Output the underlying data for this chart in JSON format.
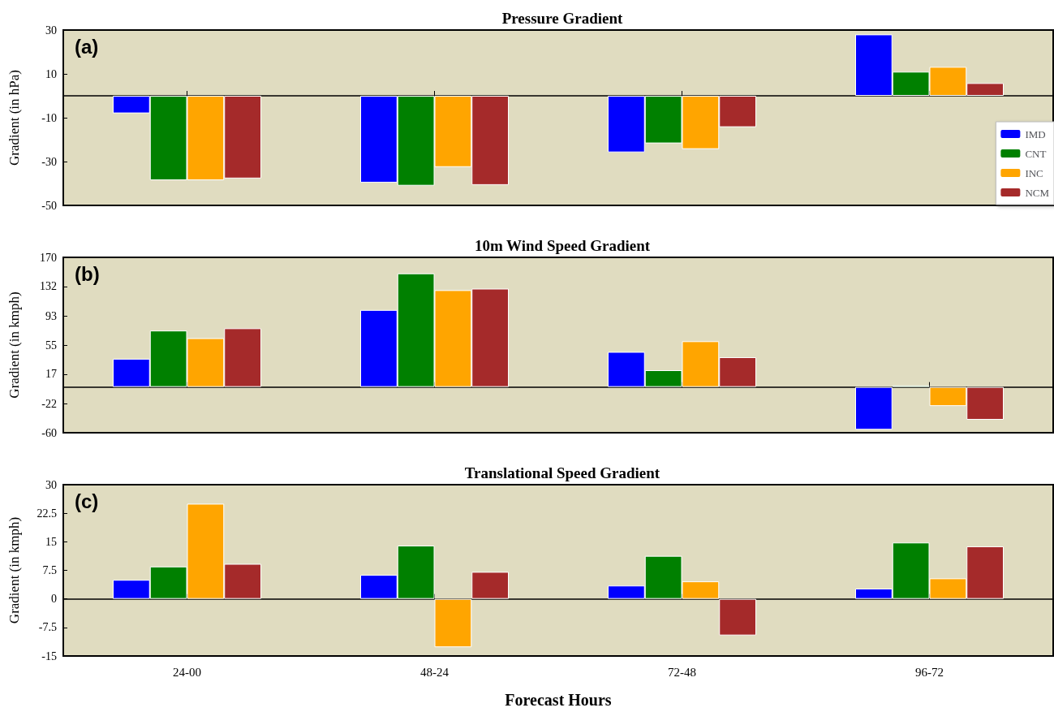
{
  "chart_data": [
    {
      "type": "bar",
      "title": "Pressure Gradient",
      "ylabel": "Gradient (in hPa)",
      "annotations": [
        "(a)"
      ],
      "categories": [
        null,
        null,
        null,
        null
      ],
      "series": [
        {
          "name": "IMD",
          "color": "#0000ff",
          "values": [
            -8,
            -39.6,
            -25.8,
            28
          ]
        },
        {
          "name": "CNT",
          "color": "#008000",
          "values": [
            -38.5,
            -41,
            -21.7,
            11
          ]
        },
        {
          "name": "INC",
          "color": "#ffa500",
          "values": [
            -38.5,
            -32.5,
            -24.3,
            13.2
          ]
        },
        {
          "name": "NCM",
          "color": "#a52a2a",
          "values": [
            -37.7,
            -40.7,
            -14.3,
            5.8
          ]
        }
      ],
      "ylim": [
        -50,
        30
      ],
      "yticks": [
        -50,
        -30,
        -10,
        10,
        30
      ],
      "legend": "right",
      "tick_labels": "y"
    },
    {
      "type": "bar",
      "title": "10m Wind Speed Gradient",
      "ylabel": "Gradient (in kmph)",
      "annotations": [
        "(b)"
      ],
      "categories": [
        null,
        null,
        null,
        null
      ],
      "series": [
        {
          "color": "#0000ff",
          "values": [
            37,
            101,
            46,
            -56
          ]
        },
        {
          "color": "#008000",
          "values": [
            74,
            149,
            22,
            2
          ]
        },
        {
          "color": "#ffa500",
          "values": [
            64,
            127,
            60,
            -25
          ]
        },
        {
          "color": "#a52a2a",
          "values": [
            77,
            129,
            39,
            -43
          ]
        }
      ],
      "ylim": [
        -60,
        170
      ],
      "yticks": [
        -60,
        {
          "value": -21.67,
          "label": "-22"
        },
        {
          "value": 16.67,
          "label": "17"
        },
        55,
        {
          "value": 93.33,
          "label": "93"
        },
        {
          "value": 131.67,
          "label": "132"
        },
        170
      ],
      "tick_labels": "y"
    },
    {
      "type": "bar",
      "title": "Translational Speed Gradient",
      "ylabel": "Gradient (in kmph)",
      "xlabel": "Forecast Hours",
      "annotations": [
        "(c)"
      ],
      "categories": [
        "24-00",
        "48-24",
        "72-48",
        "96-72"
      ],
      "series": [
        {
          "color": "#0000ff",
          "values": [
            5,
            6.3,
            3.5,
            2.7
          ]
        },
        {
          "color": "#008000",
          "values": [
            8.5,
            14,
            11.3,
            14.8
          ]
        },
        {
          "color": "#ffa500",
          "values": [
            25,
            -12.7,
            4.6,
            5.4
          ]
        },
        {
          "color": "#a52a2a",
          "values": [
            9.2,
            7.1,
            -9.6,
            13.8
          ]
        }
      ],
      "ylim": [
        -15,
        30
      ],
      "yticks": [
        -15,
        -7.5,
        0,
        7.5,
        15,
        22.5,
        30
      ]
    }
  ]
}
